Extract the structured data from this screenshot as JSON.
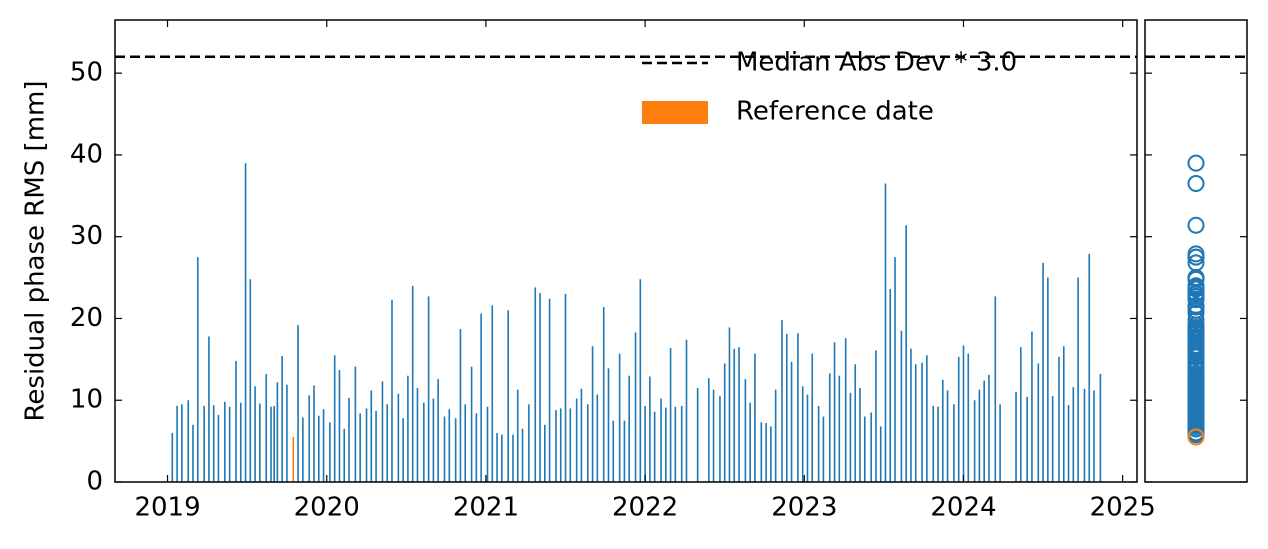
{
  "chart_data": {
    "type": "bar",
    "ylabel": "Residual phase RMS [mm]",
    "x": [
      2019.03,
      2019.06,
      2019.09,
      2019.13,
      2019.16,
      2019.19,
      2019.23,
      2019.26,
      2019.29,
      2019.32,
      2019.36,
      2019.39,
      2019.43,
      2019.46,
      2019.49,
      2019.52,
      2019.55,
      2019.58,
      2019.62,
      2019.65,
      2019.67,
      2019.69,
      2019.72,
      2019.75,
      2019.82,
      2019.85,
      2019.89,
      2019.92,
      2019.95,
      2019.98,
      2020.02,
      2020.05,
      2020.08,
      2020.11,
      2020.14,
      2020.18,
      2020.21,
      2020.25,
      2020.28,
      2020.31,
      2020.35,
      2020.38,
      2020.41,
      2020.45,
      2020.48,
      2020.51,
      2020.54,
      2020.57,
      2020.61,
      2020.64,
      2020.67,
      2020.7,
      2020.74,
      2020.77,
      2020.81,
      2020.84,
      2020.87,
      2020.91,
      2020.94,
      2020.97,
      2021.01,
      2021.04,
      2021.07,
      2021.1,
      2021.14,
      2021.17,
      2021.2,
      2021.23,
      2021.27,
      2021.31,
      2021.34,
      2021.37,
      2021.4,
      2021.44,
      2021.47,
      2021.5,
      2021.53,
      2021.57,
      2021.6,
      2021.64,
      2021.67,
      2021.7,
      2021.74,
      2021.77,
      2021.8,
      2021.84,
      2021.87,
      2021.9,
      2021.94,
      2021.97,
      2022.0,
      2022.03,
      2022.06,
      2022.1,
      2022.13,
      2022.16,
      2022.19,
      2022.23,
      2022.26,
      2022.33,
      2022.4,
      2022.43,
      2022.47,
      2022.5,
      2022.53,
      2022.56,
      2022.59,
      2022.63,
      2022.66,
      2022.69,
      2022.73,
      2022.76,
      2022.79,
      2022.82,
      2022.86,
      2022.89,
      2022.92,
      2022.96,
      2022.99,
      2023.02,
      2023.05,
      2023.09,
      2023.12,
      2023.16,
      2023.19,
      2023.22,
      2023.26,
      2023.29,
      2023.32,
      2023.35,
      2023.38,
      2023.42,
      2023.45,
      2023.48,
      2023.51,
      2023.54,
      2023.57,
      2023.61,
      2023.64,
      2023.67,
      2023.7,
      2023.74,
      2023.77,
      2023.81,
      2023.84,
      2023.87,
      2023.9,
      2023.94,
      2023.97,
      2024.0,
      2024.03,
      2024.07,
      2024.1,
      2024.13,
      2024.16,
      2024.2,
      2024.23,
      2024.33,
      2024.36,
      2024.4,
      2024.43,
      2024.47,
      2024.5,
      2024.53,
      2024.56,
      2024.6,
      2024.63,
      2024.66,
      2024.69,
      2024.72,
      2024.76,
      2024.79,
      2024.82,
      2024.86
    ],
    "values": [
      6,
      9.3,
      9.5,
      10,
      7,
      27.5,
      9.3,
      17.8,
      9.4,
      8.2,
      9.8,
      9.2,
      14.8,
      9.7,
      39,
      24.8,
      11.7,
      9.6,
      13.2,
      9.2,
      9.3,
      12.2,
      15.4,
      11.9,
      19.2,
      7.9,
      10.6,
      11.8,
      8.1,
      8.9,
      7.3,
      15.5,
      13.7,
      6.5,
      10.3,
      14.1,
      8.4,
      9,
      11.2,
      8.7,
      12.3,
      9.5,
      22.3,
      10.8,
      7.8,
      13,
      24,
      11.5,
      9.7,
      22.7,
      10.2,
      12.6,
      8,
      8.9,
      7.8,
      18.7,
      9.5,
      14.1,
      8.4,
      20.6,
      9.2,
      21.6,
      6,
      5.8,
      21,
      5.8,
      11.3,
      6.5,
      9.5,
      23.8,
      23.1,
      7,
      22.4,
      8.8,
      9,
      23,
      9,
      10.2,
      11.4,
      9.5,
      16.6,
      10.7,
      21.4,
      13.9,
      7.5,
      15.7,
      7.5,
      13,
      18.3,
      24.8,
      9.3,
      12.9,
      8.6,
      10.2,
      9.1,
      16.4,
      9.2,
      9.3,
      17.4,
      11.5,
      12.7,
      11.3,
      10.5,
      14.5,
      18.9,
      16.3,
      16.5,
      12.6,
      9.7,
      15.7,
      7.3,
      7.2,
      6.8,
      11.3,
      19.8,
      18.1,
      14.7,
      18.2,
      11.7,
      10.7,
      15.7,
      9.3,
      8,
      13.3,
      17.1,
      13,
      17.6,
      10.9,
      14.4,
      11.5,
      8,
      8.5,
      16.1,
      6.8,
      36.5,
      23.6,
      27.5,
      18.5,
      31.4,
      16.3,
      14.4,
      14.6,
      15.5,
      9.3,
      9.2,
      12.5,
      11.2,
      9.5,
      15.3,
      16.7,
      15.7,
      10,
      11.3,
      12.4,
      13.1,
      22.7,
      9.5,
      11,
      16.5,
      10.4,
      18.4,
      14.5,
      26.8,
      25,
      10.5,
      15.3,
      16.6,
      9.4,
      11.6,
      25,
      11.4,
      27.9,
      11.2,
      13.2
    ],
    "color": "#1f77b4",
    "reference": {
      "name": "Reference date",
      "x": 2019.79,
      "value": 5.5,
      "color": "#ff7f0e"
    },
    "threshold": {
      "name": "Median Abs Dev * 3.0",
      "value": 52,
      "color": "#000000"
    },
    "xlim": [
      2018.67,
      2025.09
    ],
    "xticks": [
      2019,
      2020,
      2021,
      2022,
      2023,
      2024,
      2025
    ],
    "ylim": [
      0,
      56.5
    ],
    "yticks": [
      0,
      10,
      20,
      30,
      40,
      50
    ],
    "legend": "upper right"
  }
}
